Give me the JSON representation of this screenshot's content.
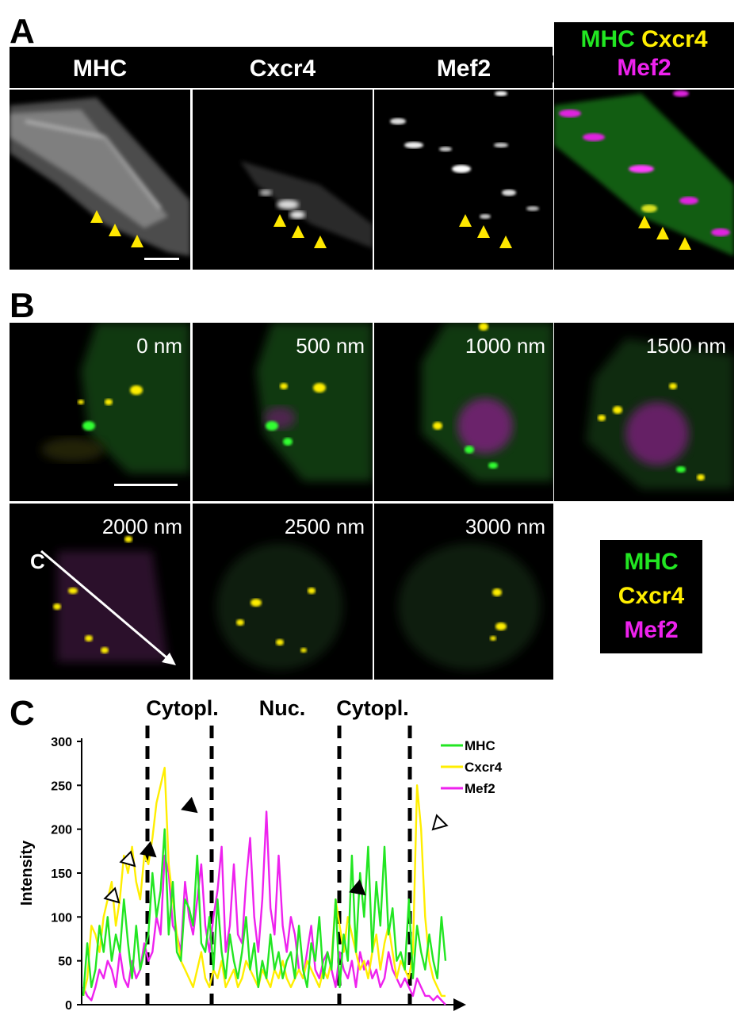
{
  "panel_A": {
    "letter": "A",
    "headers": [
      "MHC",
      "Cxcr4",
      "Mef2"
    ],
    "merge_header": {
      "line1_a": "MHC",
      "line1_b": "Cxcr4",
      "line2": "Mef2"
    }
  },
  "panel_B": {
    "letter": "B",
    "depths": [
      "0 nm",
      "500 nm",
      "1000 nm",
      "1500 nm",
      "2000 nm",
      "2500 nm",
      "3000 nm"
    ],
    "line_label": "C",
    "legend": [
      "MHC",
      "Cxcr4",
      "Mef2"
    ]
  },
  "panel_C": {
    "letter": "C",
    "regions": [
      "Cytopl.",
      "Nuc.",
      "Cytopl."
    ],
    "ylabel": "Intensity",
    "yticks": [
      "0",
      "50",
      "100",
      "150",
      "200",
      "250",
      "300"
    ]
  },
  "colors": {
    "MHC": "#22e622",
    "Cxcr4": "#ffee00",
    "Mef2": "#ee22ee",
    "arrow": "#ffe800"
  },
  "chart_data": {
    "type": "line",
    "ylabel": "Intensity",
    "ylim": [
      0,
      300
    ],
    "regions": [
      "Cytopl.",
      "Nuc.",
      "Cytopl."
    ],
    "series": [
      {
        "name": "MHC",
        "values": [
          10,
          70,
          20,
          40,
          90,
          60,
          100,
          50,
          80,
          60,
          120,
          70,
          30,
          90,
          40,
          60,
          80,
          150,
          100,
          130,
          200,
          80,
          140,
          60,
          50,
          120,
          110,
          90,
          170,
          70,
          60,
          100,
          40,
          120,
          60,
          30,
          80,
          50,
          30,
          60,
          100,
          40,
          70,
          20,
          50,
          30,
          80,
          40,
          60,
          30,
          50,
          60,
          30,
          90,
          40,
          20,
          70,
          50,
          100,
          30,
          60,
          40,
          120,
          20,
          80,
          50,
          170,
          60,
          150,
          100,
          180,
          60,
          140,
          90,
          180,
          80,
          110,
          50,
          60,
          40,
          120,
          30,
          90,
          60,
          40,
          80,
          50,
          30,
          100,
          50
        ]
      },
      {
        "name": "Cxcr4",
        "values": [
          10,
          30,
          90,
          80,
          60,
          100,
          120,
          140,
          90,
          120,
          170,
          150,
          180,
          140,
          120,
          170,
          160,
          190,
          230,
          250,
          270,
          160,
          120,
          80,
          50,
          40,
          30,
          20,
          40,
          60,
          30,
          20,
          40,
          30,
          50,
          20,
          30,
          40,
          20,
          30,
          50,
          40,
          30,
          20,
          40,
          30,
          20,
          40,
          30,
          50,
          30,
          20,
          30,
          40,
          30,
          50,
          40,
          30,
          20,
          40,
          30,
          50,
          120,
          90,
          60,
          100,
          80,
          60,
          40,
          50,
          30,
          60,
          80,
          40,
          70,
          90,
          60,
          30,
          50,
          40,
          30,
          60,
          250,
          200,
          100,
          50,
          30,
          20,
          10,
          10
        ]
      },
      {
        "name": "Mef2",
        "values": [
          20,
          10,
          5,
          20,
          40,
          30,
          50,
          40,
          20,
          60,
          30,
          20,
          50,
          30,
          40,
          70,
          50,
          60,
          100,
          80,
          170,
          150,
          90,
          80,
          60,
          140,
          100,
          80,
          120,
          160,
          90,
          60,
          100,
          130,
          180,
          60,
          90,
          160,
          80,
          70,
          140,
          190,
          100,
          60,
          120,
          220,
          110,
          80,
          170,
          90,
          60,
          100,
          80,
          40,
          30,
          60,
          90,
          40,
          30,
          50,
          60,
          40,
          20,
          60,
          40,
          30,
          50,
          20,
          60,
          40,
          50,
          30,
          40,
          20,
          30,
          60,
          40,
          30,
          20,
          30,
          20,
          10,
          30,
          20,
          10,
          10,
          5,
          10,
          5,
          0
        ]
      }
    ]
  }
}
